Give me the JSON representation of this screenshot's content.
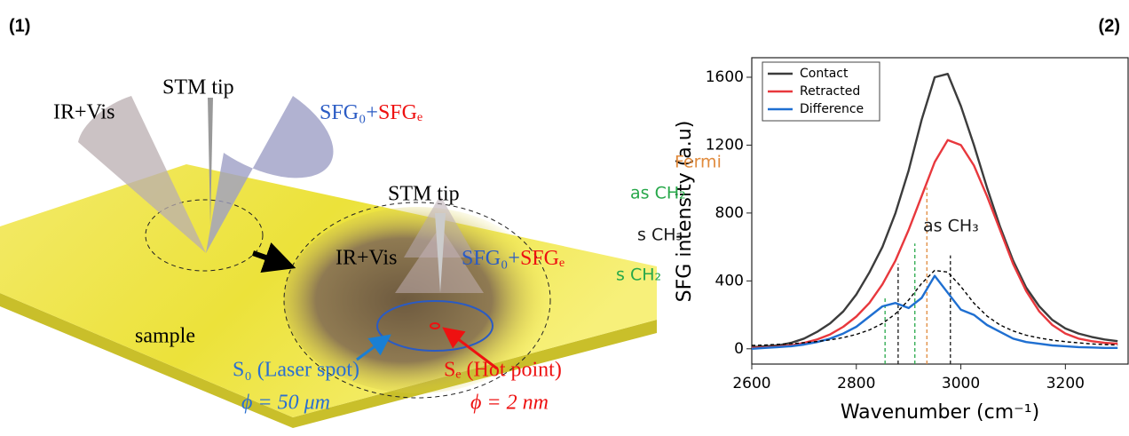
{
  "panel_labels": [
    "(1)",
    "(2)"
  ],
  "diagram": {
    "left_beam": "IR+Vis",
    "left_tip": "STM tip",
    "left_signal_0": "SFG₀+",
    "left_signal_e": "SFGₑ",
    "zoom_tip": "STM tip",
    "zoom_beam": "IR+Vis",
    "zoom_signal_0": "SFG₀+",
    "zoom_signal_e": "SFGₑ",
    "sample": "sample",
    "laser_spot": "S₀ (Laser spot)",
    "laser_size": "ϕ = 50 μm",
    "hot_point": "Sₑ (Hot point)",
    "hot_size": "ϕ = 2 nm"
  },
  "chart_data": {
    "type": "line",
    "x_label": "Wavenumber (cm⁻¹)",
    "y_label": "SFG intensity (a.u)",
    "x": [
      2600,
      2625,
      2650,
      2675,
      2700,
      2725,
      2750,
      2775,
      2800,
      2825,
      2850,
      2875,
      2900,
      2925,
      2950,
      2975,
      3000,
      3025,
      3050,
      3075,
      3100,
      3125,
      3150,
      3175,
      3200,
      3225,
      3250,
      3275,
      3300
    ],
    "series": [
      {
        "name": "Contact",
        "color": "#3c3c3c",
        "values": [
          10,
          15,
          20,
          35,
          60,
          100,
          150,
          220,
          320,
          450,
          600,
          800,
          1050,
          1350,
          1600,
          1620,
          1430,
          1200,
          950,
          720,
          520,
          360,
          250,
          170,
          120,
          90,
          70,
          55,
          45
        ]
      },
      {
        "name": "Retracted",
        "color": "#e8383d",
        "values": [
          5,
          8,
          12,
          20,
          35,
          55,
          85,
          130,
          190,
          270,
          380,
          520,
          700,
          900,
          1100,
          1230,
          1200,
          1080,
          900,
          700,
          500,
          340,
          220,
          140,
          90,
          60,
          45,
          35,
          30
        ]
      },
      {
        "name": "Difference",
        "color": "#1f6fd1",
        "values": [
          0,
          5,
          10,
          15,
          25,
          40,
          60,
          90,
          130,
          190,
          250,
          270,
          240,
          300,
          430,
          330,
          230,
          200,
          140,
          100,
          60,
          40,
          30,
          20,
          15,
          10,
          8,
          5,
          5
        ]
      },
      {
        "color": "#000000",
        "dash": true,
        "values": [
          20,
          22,
          26,
          30,
          36,
          43,
          53,
          66,
          85,
          111,
          149,
          206,
          287,
          385,
          462,
          452,
          367,
          269,
          193,
          140,
          105,
          80,
          64,
          51,
          42,
          35,
          29,
          25,
          22
        ]
      }
    ],
    "annotations": [
      {
        "text": "Fermi",
        "x": 2935,
        "top": 950,
        "color": "#e08a3c"
      },
      {
        "text": "as CH₂",
        "x": 2912,
        "top": 620,
        "color": "#27a84a"
      },
      {
        "text": "s CH₃",
        "x": 2880,
        "top": 500,
        "color": "#1a1a1a"
      },
      {
        "text": "as CH₃",
        "x": 2980,
        "top": 550,
        "color": "#1a1a1a"
      },
      {
        "text": "s CH₂",
        "x": 2855,
        "top": 310,
        "color": "#27a84a"
      }
    ],
    "xlim": [
      2600,
      3320
    ],
    "ylim": [
      -90,
      1715
    ],
    "xticks": [
      2600,
      2800,
      3000,
      3200
    ],
    "yticks": [
      0,
      400,
      800,
      1200,
      1600
    ],
    "legend": "top-left"
  }
}
